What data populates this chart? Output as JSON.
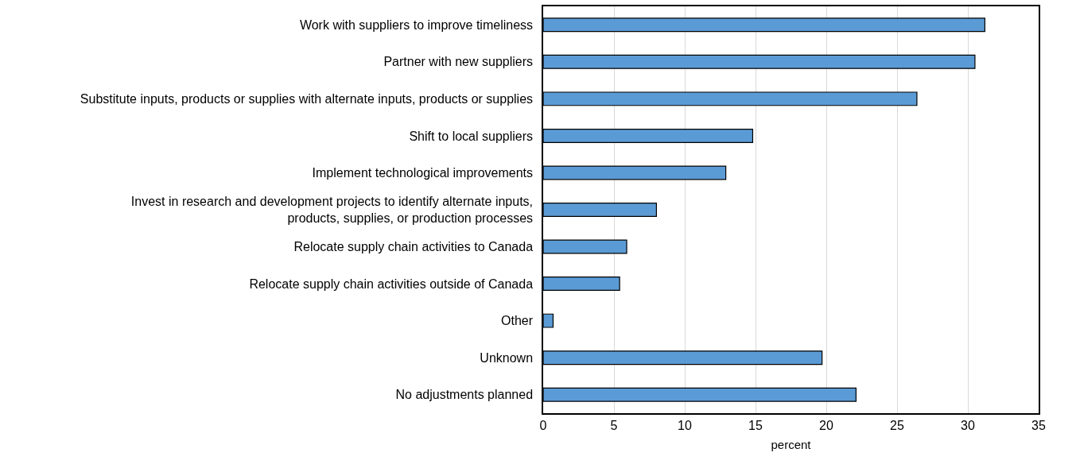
{
  "chart_data": {
    "type": "bar",
    "orientation": "horizontal",
    "xlabel": "percent",
    "categories": [
      "Work with suppliers to improve timeliness",
      "Partner with new suppliers",
      "Substitute inputs, products or supplies with alternate inputs, products or supplies",
      "Shift to local suppliers",
      "Implement technological improvements",
      "Invest in research and development projects to identify alternate inputs,\nproducts, supplies, or production processes",
      "Relocate supply chain activities to Canada",
      "Relocate supply chain activities outside of Canada",
      "Other",
      "Unknown",
      "No adjustments planned"
    ],
    "values": [
      31.2,
      30.5,
      26.4,
      14.8,
      12.9,
      8.0,
      5.9,
      5.4,
      0.7,
      19.7,
      22.1
    ],
    "color": "#5b9bd5",
    "xlim": [
      0,
      35
    ],
    "xticks": [
      0,
      5,
      10,
      15,
      20,
      25,
      30,
      35
    ],
    "grid": "x"
  }
}
